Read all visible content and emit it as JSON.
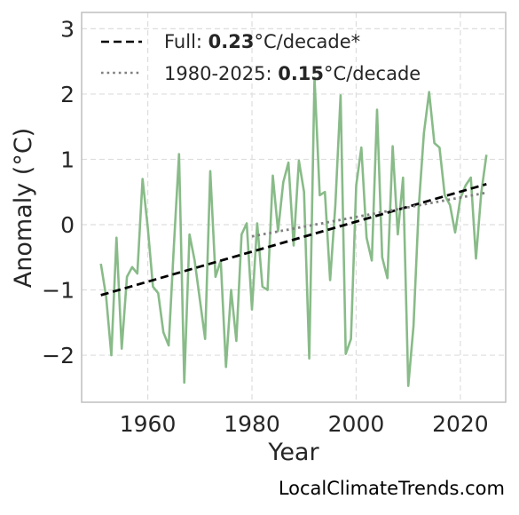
{
  "chart_data": {
    "type": "line",
    "xlabel": "Year",
    "ylabel": "Anomaly (°C)",
    "xlim": [
      1947.3,
      2028.7
    ],
    "ylim": [
      -2.72,
      3.25
    ],
    "x_ticks": [
      1960,
      1980,
      2000,
      2020
    ],
    "y_ticks": [
      -2,
      -1,
      0,
      1,
      2,
      3
    ],
    "y_tick_labels": [
      "−2",
      "−1",
      "0",
      "1",
      "2",
      "3"
    ],
    "grid": true,
    "legend_position": "top-left",
    "series": [
      {
        "style": "solid",
        "color": "#88bb88",
        "x": [
          1951,
          1952,
          1953,
          1954,
          1955,
          1956,
          1957,
          1958,
          1959,
          1960,
          1961,
          1962,
          1963,
          1964,
          1965,
          1966,
          1967,
          1968,
          1969,
          1970,
          1971,
          1972,
          1973,
          1974,
          1975,
          1976,
          1977,
          1978,
          1979,
          1980,
          1981,
          1982,
          1983,
          1984,
          1985,
          1986,
          1987,
          1988,
          1989,
          1990,
          1991,
          1992,
          1993,
          1994,
          1995,
          1996,
          1997,
          1998,
          1999,
          2000,
          2001,
          2002,
          2003,
          2004,
          2005,
          2006,
          2007,
          2008,
          2009,
          2010,
          2011,
          2012,
          2013,
          2014,
          2015,
          2016,
          2017,
          2018,
          2019,
          2020,
          2021,
          2022,
          2023,
          2024,
          2025
        ],
        "y": [
          -0.6,
          -1.1,
          -2.0,
          -0.2,
          -1.9,
          -0.8,
          -0.65,
          -0.75,
          0.7,
          -0.05,
          -0.95,
          -1.05,
          -1.65,
          -1.85,
          -0.35,
          1.08,
          -2.42,
          -0.15,
          -0.55,
          -1.15,
          -1.75,
          0.82,
          -0.8,
          -0.55,
          -2.18,
          -1.0,
          -1.78,
          -0.15,
          0.02,
          -1.3,
          0.02,
          -0.95,
          -1.0,
          0.75,
          -0.1,
          0.65,
          0.95,
          -0.32,
          0.98,
          0.5,
          -2.05,
          2.25,
          0.45,
          0.5,
          -0.85,
          0.3,
          1.98,
          -1.98,
          -1.75,
          0.6,
          1.18,
          -0.2,
          -0.55,
          1.76,
          -0.5,
          -0.82,
          1.2,
          -0.15,
          0.72,
          -2.47,
          -1.55,
          0.25,
          1.4,
          2.03,
          1.25,
          1.18,
          0.45,
          0.3,
          -0.12,
          0.4,
          0.6,
          0.72,
          -0.52,
          0.48,
          1.07
        ]
      },
      {
        "name": "Full: 0.23°C/decade*",
        "style": "dashed",
        "color": "#000000",
        "x": [
          1951,
          2025
        ],
        "y": [
          -1.08,
          0.62
        ]
      },
      {
        "name": "1980-2025: 0.15°C/decade",
        "style": "dotted",
        "color": "#808080",
        "x": [
          1980,
          2025
        ],
        "y": [
          -0.18,
          0.49
        ]
      }
    ]
  },
  "legend": {
    "full_prefix": "Full: ",
    "full_value": "0.23",
    "full_suffix": "°C/decade*",
    "recent_prefix": "1980-2025: ",
    "recent_value": "0.15",
    "recent_suffix": "°C/decade"
  },
  "footer": {
    "source": "LocalClimateTrends.com"
  },
  "colors": {
    "frame": "#bfbfbf",
    "grid": "#dddddd",
    "background": "#ffffff"
  }
}
